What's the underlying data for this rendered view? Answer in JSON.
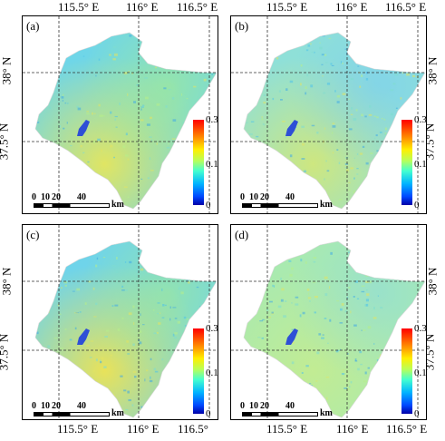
{
  "figure": {
    "top_longitude_labels": [
      "115.5° E",
      "116° E",
      "116.5° E"
    ],
    "bottom_longitude_labels": [
      "115.5° E",
      "116° E",
      "116.5°",
      "115.5° E",
      "116° E",
      "116.5° E"
    ],
    "latitude_labels": [
      "38° N",
      "37.5° N"
    ]
  },
  "panels": [
    {
      "tag": "(a)",
      "colorbar_ticks": [
        "0.30",
        "0.15",
        "0"
      ],
      "scale": {
        "labels": [
          "0",
          "10",
          "20",
          "40"
        ],
        "unit": "km"
      }
    },
    {
      "tag": "(b)",
      "colorbar_ticks": [
        "0.30",
        "0.15",
        "0"
      ],
      "scale": {
        "labels": [
          "0",
          "10",
          "20",
          "40"
        ],
        "unit": "km"
      }
    },
    {
      "tag": "(c)",
      "colorbar_ticks": [
        "0.30",
        "0.15",
        "0"
      ],
      "scale": {
        "labels": [
          "0",
          "10",
          "20",
          "40"
        ],
        "unit": "km"
      }
    },
    {
      "tag": "(d)",
      "colorbar_ticks": [
        "0.30",
        "0.15",
        "0"
      ],
      "scale": {
        "labels": [
          "0",
          "10",
          "20",
          "40"
        ],
        "unit": "km"
      }
    }
  ],
  "colors": {
    "map_cyan": "#5fd3e6",
    "map_green": "#9fe89f",
    "map_yellow": "#e8e85a",
    "lake_blue": "#2e4fd6",
    "gridline": "#333333"
  },
  "colorbar": {
    "min": 0,
    "max": 0.3,
    "mid": 0.15
  }
}
